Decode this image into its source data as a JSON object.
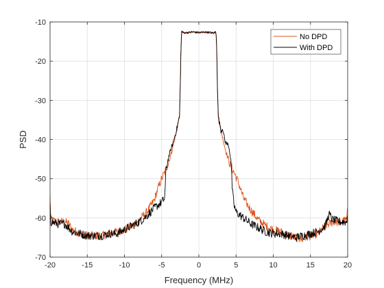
{
  "chart_data": {
    "type": "line",
    "title": "",
    "xlabel": "Frequency (MHz)",
    "ylabel": "PSD",
    "xlim": [
      -20,
      20
    ],
    "ylim": [
      -70,
      -10
    ],
    "xticks": [
      -20,
      -15,
      -10,
      -5,
      0,
      5,
      10,
      15,
      20
    ],
    "yticks": [
      -70,
      -60,
      -50,
      -40,
      -30,
      -20,
      -10
    ],
    "grid": true,
    "legend_position": "top-right",
    "series": [
      {
        "name": "No DPD",
        "color": "#D95319",
        "x": [
          -20,
          -19.9,
          -19,
          -18,
          -17.5,
          -17,
          -16,
          -15,
          -14,
          -13,
          -12,
          -11,
          -10,
          -9,
          -8,
          -7,
          -6,
          -5.5,
          -5,
          -4.5,
          -4,
          -3.5,
          -3,
          -2.6,
          -2.5,
          -2.4,
          -2.3,
          -2,
          -1,
          0,
          1,
          2,
          2.3,
          2.4,
          2.5,
          2.6,
          3,
          3.5,
          4,
          4.5,
          5,
          5.5,
          6,
          7,
          8,
          9,
          10,
          11,
          12,
          13,
          14,
          15,
          16,
          17,
          17.5,
          18,
          19,
          19.9,
          20
        ],
        "y": [
          -54.5,
          -60.5,
          -61,
          -61,
          -61.5,
          -63,
          -64,
          -64.5,
          -64.5,
          -64.5,
          -64,
          -63.5,
          -63,
          -62,
          -60.5,
          -58.5,
          -55.5,
          -52.5,
          -50,
          -48,
          -45.5,
          -42,
          -38,
          -34,
          -27,
          -16,
          -12.5,
          -12.8,
          -12.6,
          -12.7,
          -12.6,
          -12.8,
          -12.5,
          -16,
          -27,
          -34,
          -38,
          -42,
          -45.5,
          -47.5,
          -49.5,
          -52,
          -55,
          -58,
          -60.5,
          -62,
          -63,
          -63.5,
          -64.5,
          -65,
          -65.5,
          -64.5,
          -64,
          -62,
          -61.5,
          -61,
          -61,
          -60.5,
          -57
        ]
      },
      {
        "name": "With DPD",
        "color": "#000000",
        "x": [
          -20,
          -19.9,
          -19,
          -18,
          -17.5,
          -17,
          -16,
          -15,
          -14,
          -13,
          -12,
          -11,
          -10,
          -9,
          -8,
          -7,
          -6,
          -5,
          -4.6,
          -4.4,
          -4,
          -3.5,
          -3,
          -2.6,
          -2.5,
          -2.4,
          -2.3,
          -2,
          -1,
          0,
          1,
          2,
          2.3,
          2.4,
          2.5,
          2.6,
          3,
          3.2,
          3.5,
          4,
          4.3,
          4.5,
          4.7,
          5,
          6,
          7,
          8,
          9,
          10,
          11,
          12,
          13,
          14,
          15,
          16,
          17,
          17.5,
          18,
          19,
          19.9,
          20
        ],
        "y": [
          -56,
          -61,
          -61.5,
          -61.5,
          -62.5,
          -63.5,
          -64,
          -64.5,
          -64.5,
          -64.5,
          -64,
          -64,
          -63,
          -62,
          -61,
          -59.5,
          -57.5,
          -56,
          -55,
          -47.5,
          -44,
          -41,
          -37.5,
          -34,
          -27,
          -16,
          -12.5,
          -12.8,
          -12.6,
          -12.7,
          -12.6,
          -12.8,
          -12.5,
          -16,
          -27,
          -34,
          -38,
          -37,
          -40.5,
          -41.5,
          -45,
          -53,
          -56.5,
          -58.5,
          -60,
          -61.5,
          -62.5,
          -63.5,
          -64,
          -64,
          -64.5,
          -65,
          -64.5,
          -64,
          -63.5,
          -62,
          -59,
          -60.5,
          -61,
          -61,
          -57
        ]
      }
    ]
  }
}
